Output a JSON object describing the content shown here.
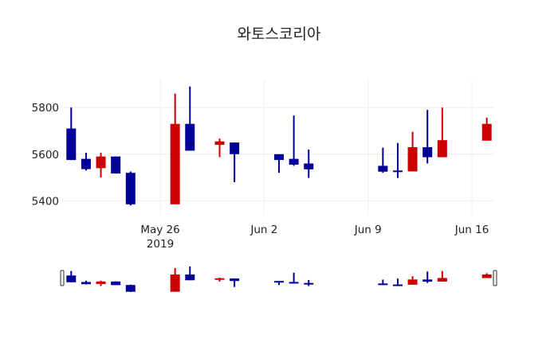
{
  "title": "와토스코리아",
  "colors": {
    "increasing": "#cc0000",
    "decreasing": "#000099",
    "grid": "#eeeeee",
    "text": "#222222"
  },
  "chart_data": {
    "type": "candlestick",
    "title": "와토스코리아",
    "xlabel": "",
    "ylabel": "",
    "ylim": [
      5340,
      5920
    ],
    "yticks": [
      5400,
      5600,
      5800
    ],
    "xticks": [
      {
        "date": "2019-05-26",
        "label": "May 26",
        "sublabel": "2019"
      },
      {
        "date": "2019-06-02",
        "label": "Jun 2"
      },
      {
        "date": "2019-06-09",
        "label": "Jun 9"
      },
      {
        "date": "2019-06-16",
        "label": "Jun 16"
      }
    ],
    "xrange": [
      "2019-05-19T12:00",
      "2019-06-17T12:00"
    ],
    "legend": "none",
    "rangeslider": true,
    "increasing_color": "#cc0000",
    "decreasing_color": "#000099",
    "x": [
      "2019-05-20",
      "2019-05-21",
      "2019-05-22",
      "2019-05-23",
      "2019-05-24",
      "2019-05-27",
      "2019-05-28",
      "2019-05-30",
      "2019-05-31",
      "2019-06-03",
      "2019-06-04",
      "2019-06-05",
      "2019-06-10",
      "2019-06-11",
      "2019-06-12",
      "2019-06-13",
      "2019-06-14",
      "2019-06-17"
    ],
    "open": [
      5710,
      5580,
      5540,
      5590,
      5520,
      5385,
      5730,
      5640,
      5650,
      5600,
      5580,
      5560,
      5550,
      5530,
      5526,
      5630,
      5587,
      5658
    ],
    "high": [
      5800,
      5606,
      5606,
      5590,
      5526,
      5860,
      5890,
      5667,
      5650,
      5600,
      5766,
      5620,
      5628,
      5648,
      5696,
      5790,
      5800,
      5757
    ],
    "low": [
      5575,
      5530,
      5500,
      5517,
      5380,
      5385,
      5615,
      5587,
      5480,
      5520,
      5550,
      5498,
      5520,
      5498,
      5526,
      5560,
      5587,
      5658
    ],
    "close": [
      5575,
      5536,
      5590,
      5517,
      5385,
      5730,
      5615,
      5655,
      5600,
      5575,
      5555,
      5535,
      5525,
      5528,
      5630,
      5587,
      5660,
      5730
    ]
  }
}
